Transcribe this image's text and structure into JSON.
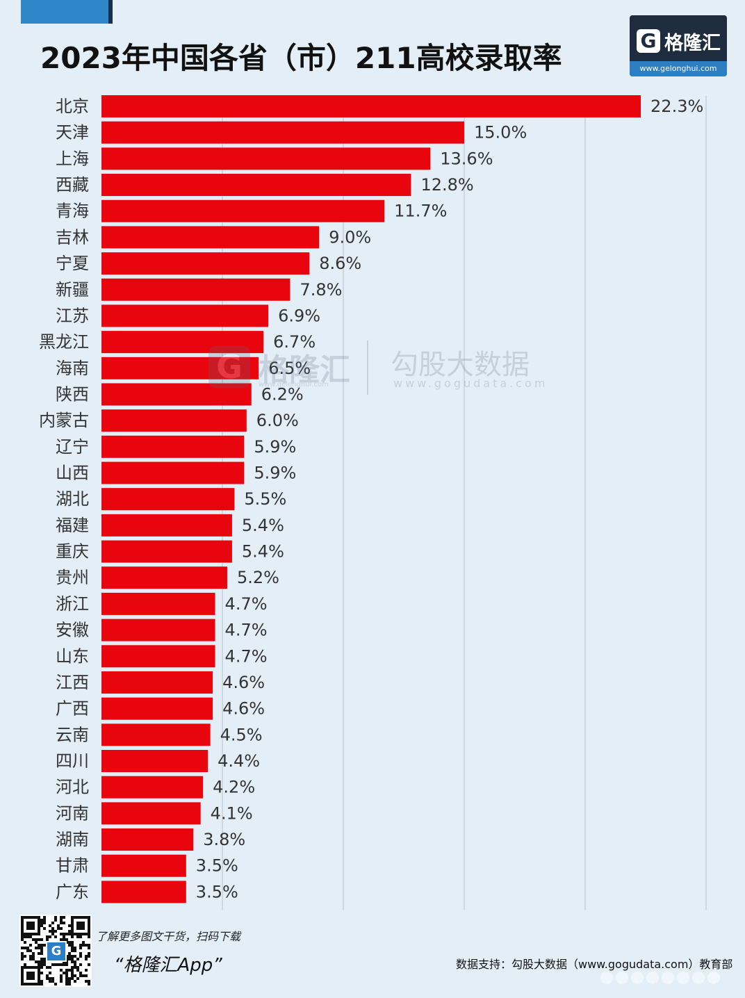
{
  "header": {
    "title": "2023年中国各省（市）211高校录取率"
  },
  "logo": {
    "mark": "G",
    "name": "格隆汇",
    "url": "www.gelonghui.com"
  },
  "watermark": {
    "mark": "G",
    "name": "格隆汇",
    "url": "www.gelonghui.com",
    "partner_name": "勾股大数据",
    "partner_url": "www.gogudata.com"
  },
  "footer": {
    "tagline": "了解更多图文干货，扫码下载",
    "app_name": "“格隆汇App”",
    "source": "数据支持：勾股大数据（www.gogudata.com）教育部",
    "qr_mark": "G"
  },
  "colors": {
    "bar": "#e8050d",
    "background": "#e4eef7",
    "grid": "#c3c9cf",
    "text": "#333333"
  },
  "chart_data": {
    "type": "bar",
    "orientation": "horizontal",
    "title": "2023年中国各省（市）211高校录取率",
    "xlim": [
      0,
      25
    ],
    "unit": "%",
    "grid": true,
    "categories": [
      "北京",
      "天津",
      "上海",
      "西藏",
      "青海",
      "吉林",
      "宁夏",
      "新疆",
      "江苏",
      "黑龙江",
      "海南",
      "陕西",
      "内蒙古",
      "辽宁",
      "山西",
      "湖北",
      "福建",
      "重庆",
      "贵州",
      "浙江",
      "安徽",
      "山东",
      "江西",
      "广西",
      "云南",
      "四川",
      "河北",
      "河南",
      "湖南",
      "甘肃",
      "广东"
    ],
    "values": [
      22.3,
      15.0,
      13.6,
      12.8,
      11.7,
      9.0,
      8.6,
      7.8,
      6.9,
      6.7,
      6.5,
      6.2,
      6.0,
      5.9,
      5.9,
      5.5,
      5.4,
      5.4,
      5.2,
      4.7,
      4.7,
      4.7,
      4.6,
      4.6,
      4.5,
      4.4,
      4.2,
      4.1,
      3.8,
      3.5,
      3.5
    ],
    "labels": [
      "22.3%",
      "15.0%",
      "13.6%",
      "12.8%",
      "11.7%",
      "9.0%",
      "8.6%",
      "7.8%",
      "6.9%",
      "6.7%",
      "6.5%",
      "6.2%",
      "6.0%",
      "5.9%",
      "5.9%",
      "5.5%",
      "5.4%",
      "5.4%",
      "5.2%",
      "4.7%",
      "4.7%",
      "4.7%",
      "4.6%",
      "4.6%",
      "4.5%",
      "4.4%",
      "4.2%",
      "4.1%",
      "3.8%",
      "3.5%",
      "3.5%"
    ]
  }
}
